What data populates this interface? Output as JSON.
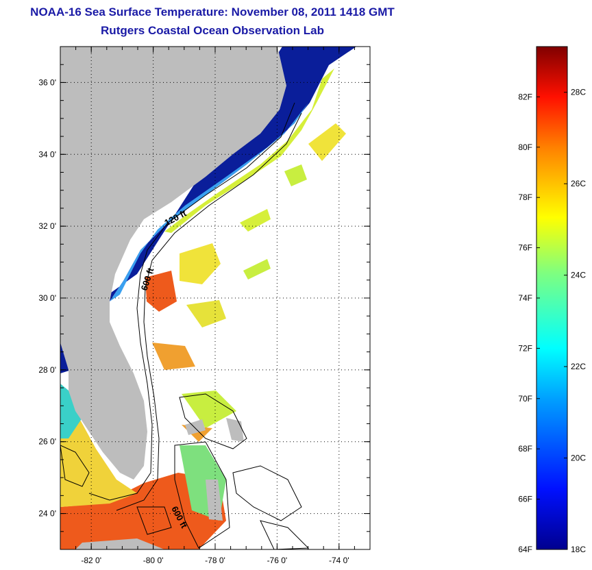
{
  "title": {
    "line1": "NOAA-16 Sea Surface Temperature:  November 08, 2011 1418 GMT",
    "line2": "Rutgers Coastal Ocean Observation Lab"
  },
  "map": {
    "lon_range": [
      -83,
      -73
    ],
    "lat_range": [
      23,
      37
    ],
    "lat_ticks": [
      {
        "value": 24,
        "label": "24 0'"
      },
      {
        "value": 26,
        "label": "26 0'"
      },
      {
        "value": 28,
        "label": "28 0'"
      },
      {
        "value": 30,
        "label": "30 0'"
      },
      {
        "value": 32,
        "label": "32 0'"
      },
      {
        "value": 34,
        "label": "34 0'"
      },
      {
        "value": 36,
        "label": "36 0'"
      }
    ],
    "lon_ticks": [
      {
        "value": -82,
        "label": "-82 0'"
      },
      {
        "value": -80,
        "label": "-80 0'"
      },
      {
        "value": -78,
        "label": "-78 0'"
      },
      {
        "value": -76,
        "label": "-76 0'"
      },
      {
        "value": -74,
        "label": "-74 0'"
      }
    ],
    "contour_labels": {
      "c120": "120 ft",
      "c600a": "600 ft",
      "c600b": "600 ft"
    },
    "colors": {
      "land": "#bdbdbd",
      "cold": "#0a1e9a",
      "warm": "#ee5a1c"
    }
  },
  "colorbar": {
    "range_f": [
      64,
      84
    ],
    "range_c": [
      18,
      29
    ],
    "f_labels": [
      "64F",
      "66F",
      "68F",
      "70F",
      "72F",
      "74F",
      "76F",
      "78F",
      "80F",
      "82F"
    ],
    "c_labels": [
      "18C",
      "20C",
      "22C",
      "24C",
      "26C",
      "28C"
    ]
  }
}
